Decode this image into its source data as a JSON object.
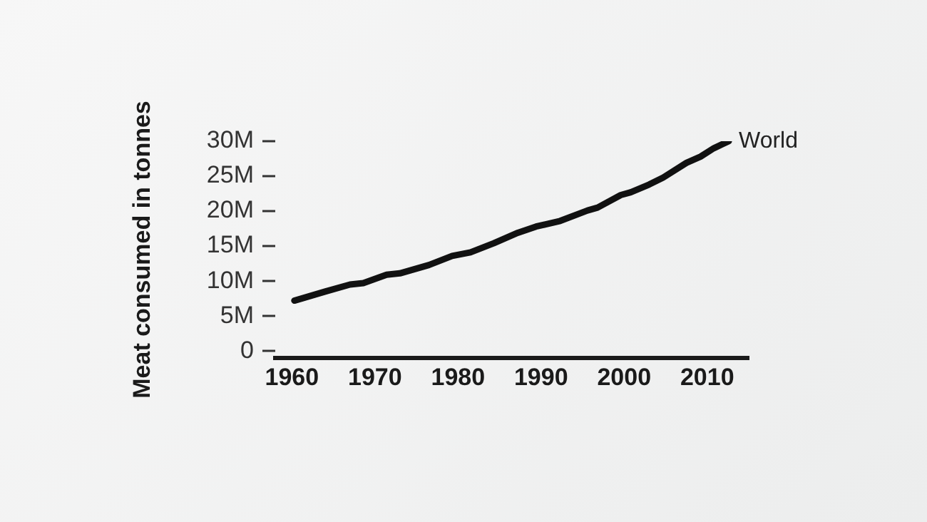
{
  "chart_data": {
    "type": "line",
    "ylabel": "Meat consumed in tonnes",
    "x": [
      1960.3,
      1964,
      1967,
      1968.6,
      1971.4,
      1973,
      1976.5,
      1979.3,
      1981.5,
      1984.3,
      1987.2,
      1989.4,
      1992.3,
      1995.6,
      1996.8,
      1999.6,
      2000.8,
      2003,
      2004.7,
      2007.5,
      2009.2,
      2010.8,
      2012.6
    ],
    "series": [
      {
        "name": "World",
        "color": "#111111",
        "values": [
          7200000,
          8500000,
          9500000,
          9700000,
          10900000,
          11100000,
          12300000,
          13600000,
          14100000,
          15400000,
          16900000,
          17800000,
          18600000,
          20100000,
          20500000,
          22300000,
          22700000,
          23800000,
          24800000,
          26900000,
          27800000,
          29000000,
          30000000
        ]
      }
    ],
    "xlim": [
      1958,
      2015
    ],
    "xticks": [
      1960,
      1970,
      1980,
      1990,
      2000,
      2010
    ],
    "ylim": [
      -1000000,
      30000000
    ],
    "yticks": [
      {
        "value": 0,
        "label": "0"
      },
      {
        "value": 5000000,
        "label": "5M"
      },
      {
        "value": 10000000,
        "label": "10M"
      },
      {
        "value": 15000000,
        "label": "15M"
      },
      {
        "value": 20000000,
        "label": "20M"
      },
      {
        "value": 25000000,
        "label": "25M"
      },
      {
        "value": 30000000,
        "label": "30M"
      }
    ],
    "legend": false,
    "marker": "none",
    "line_style": "solid"
  }
}
